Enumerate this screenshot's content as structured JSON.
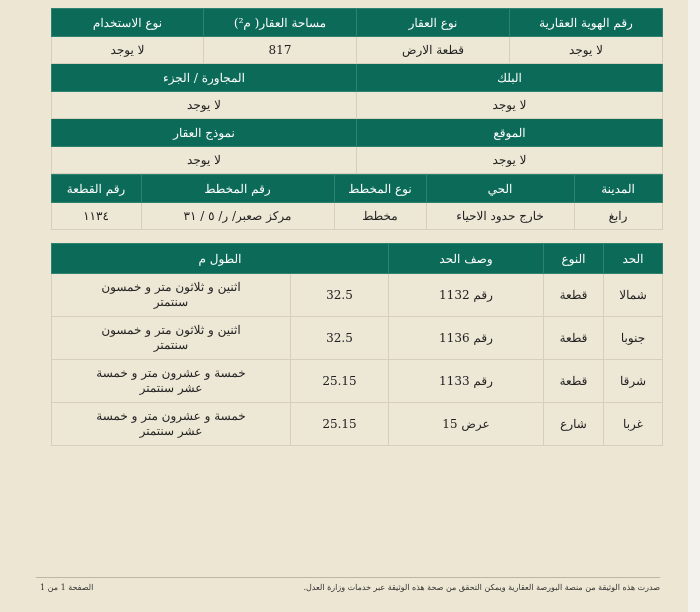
{
  "info": {
    "headers1": [
      "رقم الهوية العقارية",
      "نوع العقار",
      "مساحة العقار( م²)",
      "نوع الاستخدام"
    ],
    "values1": [
      "لا يوجد",
      "قطعة الارض",
      "817",
      "لا يوجد"
    ],
    "headers2": [
      "البلك",
      "المجاورة / الجزء"
    ],
    "values2": [
      "لا يوجد",
      "لا يوجد"
    ],
    "headers3": [
      "الموقع",
      "نموذج العقار"
    ],
    "values3": [
      "لا يوجد",
      "لا يوجد"
    ],
    "headers4": [
      "المدينة",
      "الحي",
      "نوع المخطط",
      "رقم المخطط",
      "رقم القطعة"
    ],
    "values4": [
      "رابغ",
      "خارج حدود الاحياء",
      "مخطط",
      "مركز صعبر/ ر/ ٥ / ٣١",
      "١١٣٤"
    ]
  },
  "boundaries": {
    "headers": [
      "الحد",
      "النوع",
      "وصف الحد",
      "الطول م"
    ],
    "rows": [
      {
        "side": "شمالا",
        "type": "قطعة",
        "desc": "رقم 1132",
        "length": "32.5",
        "length_text": "اثنين و ثلاثون متر و خمسون سنتمتر"
      },
      {
        "side": "جنوبا",
        "type": "قطعة",
        "desc": "رقم 1136",
        "length": "32.5",
        "length_text": "اثنين و ثلاثون متر و خمسون سنتمتر"
      },
      {
        "side": "شرقا",
        "type": "قطعة",
        "desc": "رقم 1133",
        "length": "25.15",
        "length_text": "خمسة و عشرون متر و خمسة عشر سنتمتر"
      },
      {
        "side": "غربا",
        "type": "شارع",
        "desc": "عرض 15",
        "length": "25.15",
        "length_text": "خمسة و عشرون متر و خمسة عشر سنتمتر"
      }
    ]
  },
  "footer": {
    "note": "صدرت هذه الوثيقة من منصة البورصة العقارية ويمكن التحقق من صحة هذه الوثيقة عبر خدمات وزارة العدل.",
    "page": "الصفحة 1 من 1"
  },
  "colors": {
    "header_green": "#0c6b58",
    "background": "#ece6d2"
  }
}
